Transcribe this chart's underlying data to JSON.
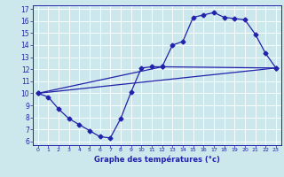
{
  "xlabel": "Graphe des températures (°c)",
  "xlim": [
    -0.5,
    23.5
  ],
  "ylim": [
    5.7,
    17.3
  ],
  "yticks": [
    6,
    7,
    8,
    9,
    10,
    11,
    12,
    13,
    14,
    15,
    16,
    17
  ],
  "xticks": [
    0,
    1,
    2,
    3,
    4,
    5,
    6,
    7,
    8,
    9,
    10,
    11,
    12,
    13,
    14,
    15,
    16,
    17,
    18,
    19,
    20,
    21,
    22,
    23
  ],
  "line_color": "#2222aa",
  "bg_color": "#cce8ec",
  "grid_color": "#ffffff",
  "line1_x": [
    0,
    1,
    2,
    3,
    4,
    5,
    6,
    7,
    8,
    9,
    10,
    11,
    12,
    13,
    14,
    15,
    16,
    17,
    18,
    19,
    20,
    21,
    22,
    23
  ],
  "line1_y": [
    10.0,
    9.7,
    8.7,
    7.9,
    7.4,
    6.9,
    6.4,
    6.3,
    7.9,
    10.1,
    12.1,
    12.2,
    12.2,
    14.0,
    14.3,
    16.3,
    16.5,
    16.7,
    16.3,
    16.2,
    16.1,
    14.9,
    13.3,
    12.1
  ],
  "line2_x": [
    0,
    12,
    23
  ],
  "line2_y": [
    10.0,
    12.2,
    12.1
  ],
  "line3_x": [
    0,
    23
  ],
  "line3_y": [
    10.0,
    12.1
  ],
  "markersize": 2.5,
  "linewidth": 0.9
}
